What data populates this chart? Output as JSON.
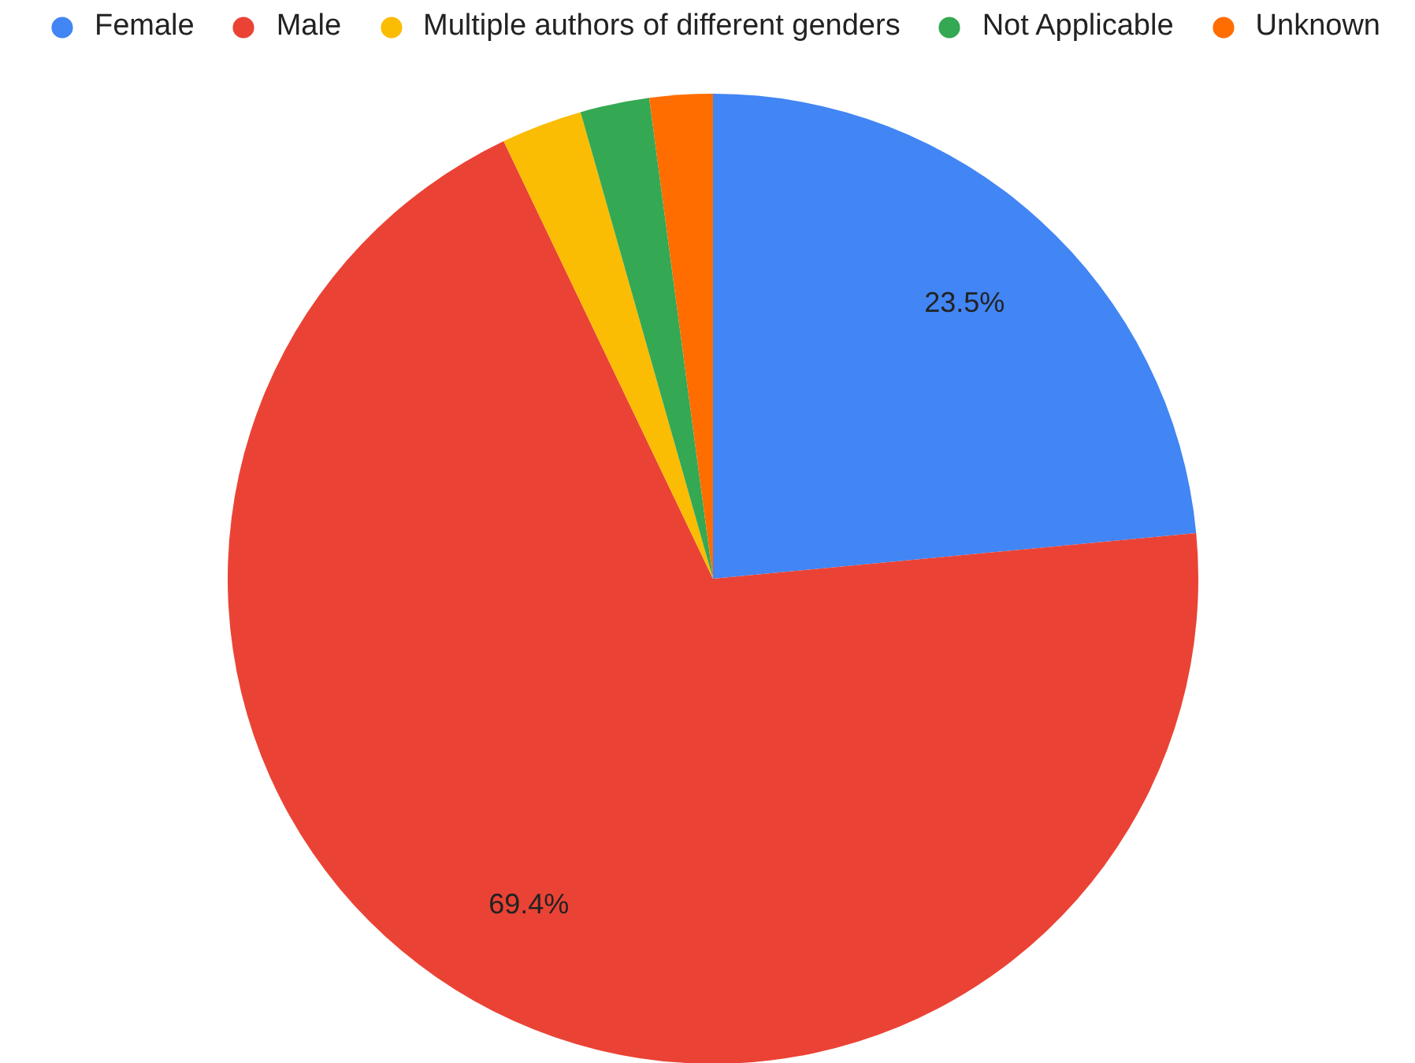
{
  "chart_data": {
    "type": "pie",
    "categories": [
      "Female",
      "Male",
      "Multiple authors of different genders",
      "Not Applicable",
      "Unknown"
    ],
    "values": [
      23.5,
      69.4,
      2.7,
      2.3,
      2.1
    ],
    "colors": [
      "#4285f4",
      "#ea4335",
      "#fbbc04",
      "#34a853",
      "#ff6d01"
    ],
    "value_labels": [
      "23.5%",
      "69.4%",
      null,
      null,
      null
    ],
    "legend": "top"
  }
}
